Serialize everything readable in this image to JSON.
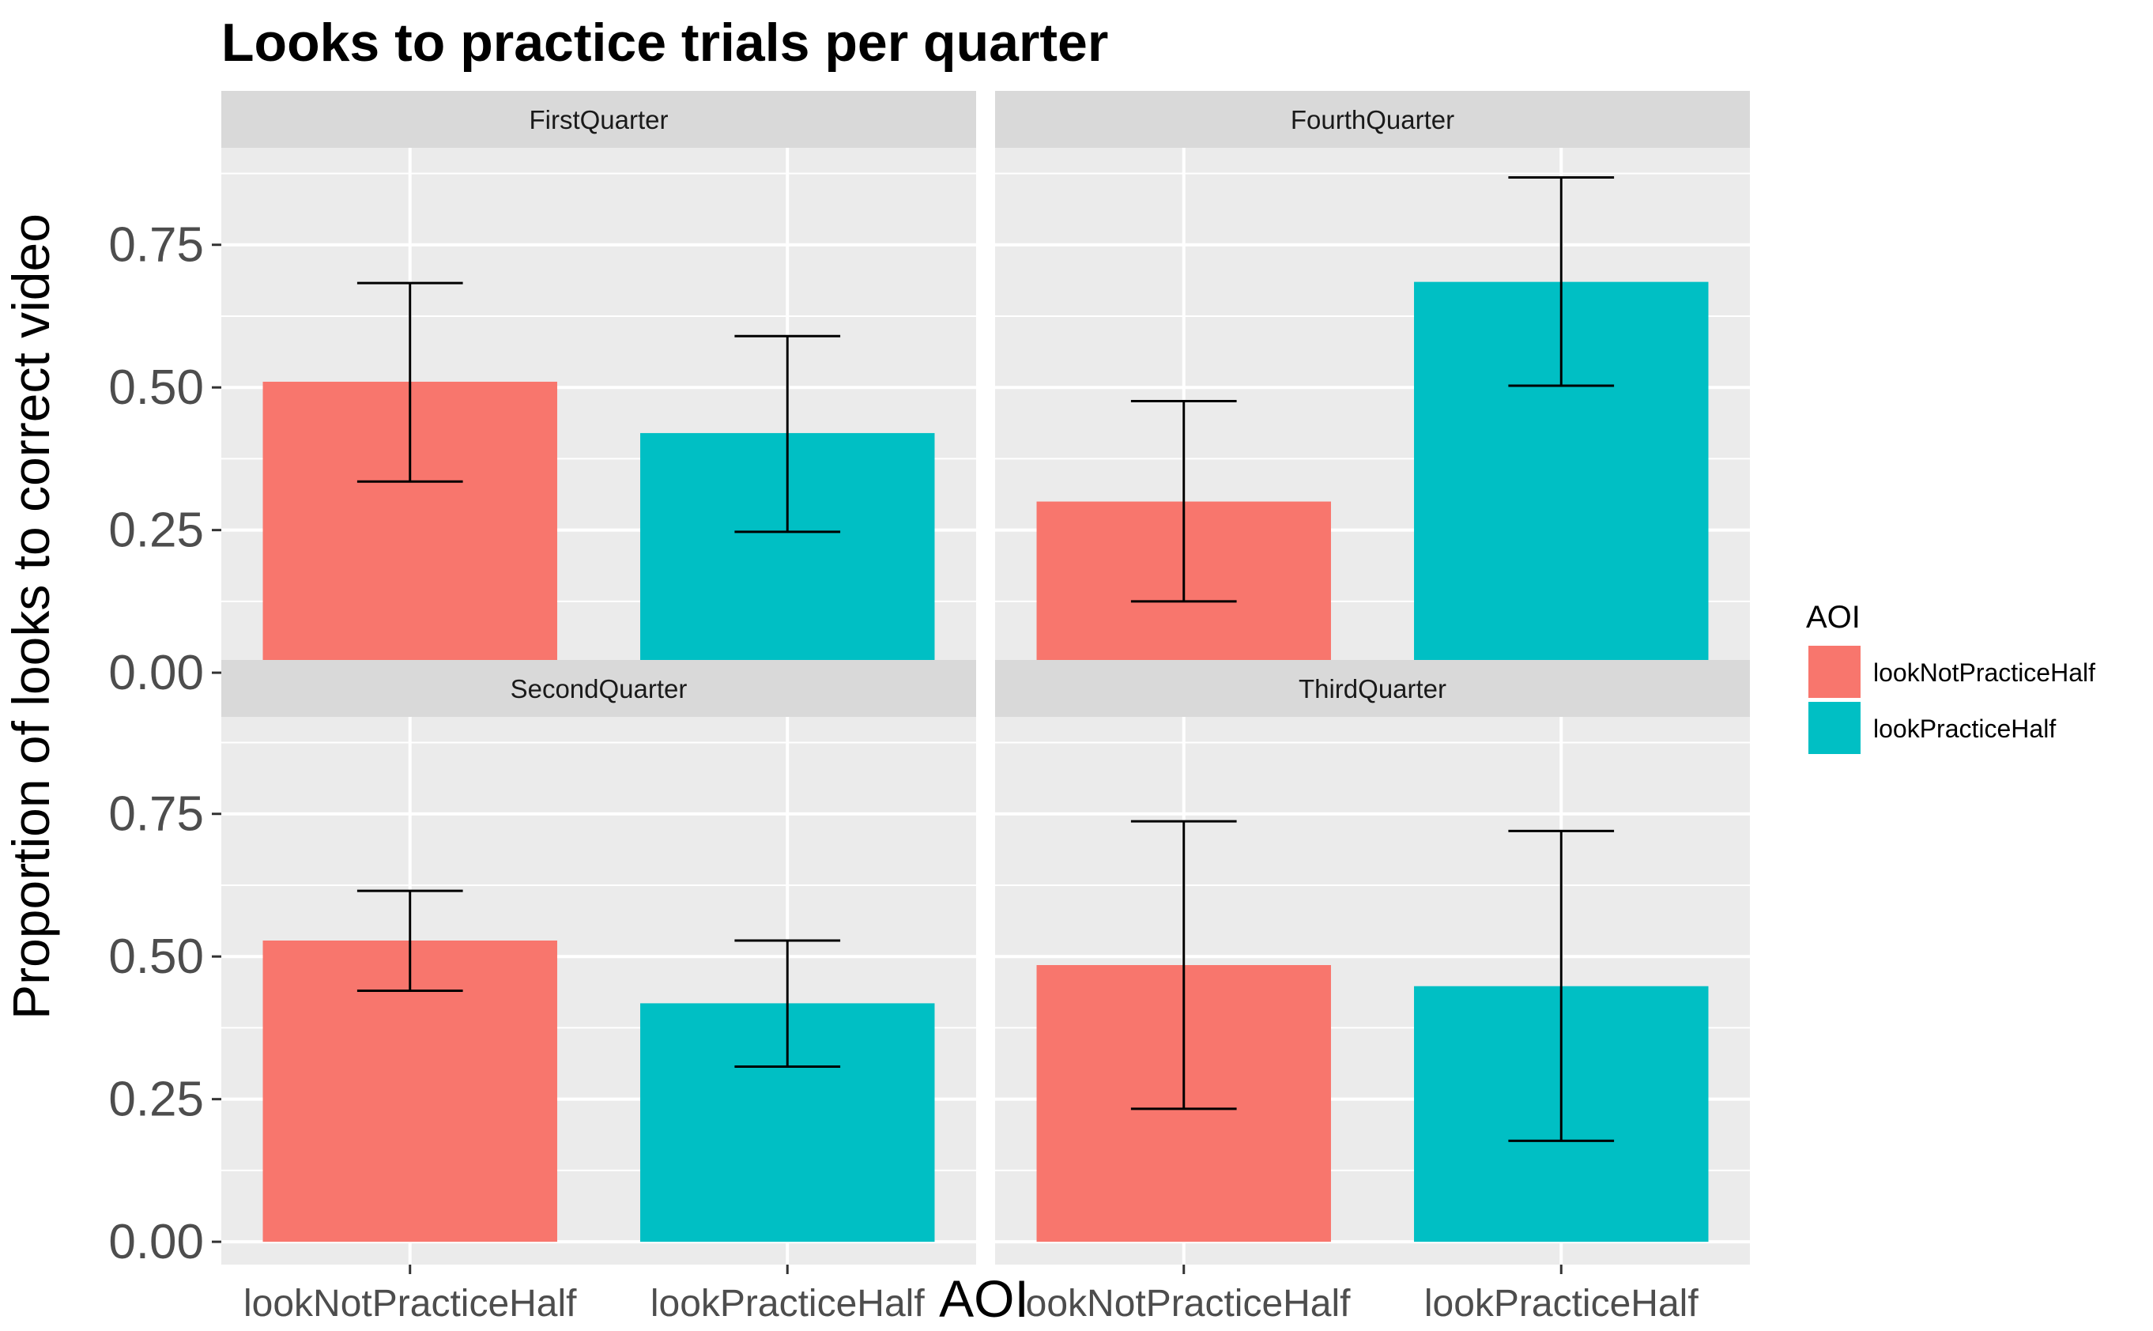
{
  "chart_data": {
    "type": "bar",
    "title": "Looks to practice trials per quarter",
    "xlabel": "AOI",
    "ylabel": "Proportion of looks to correct video",
    "categories": [
      "lookNotPracticeHalf",
      "lookPracticeHalf"
    ],
    "ylim": [
      -0.04,
      0.92
    ],
    "yticks": [
      "0.00",
      "0.25",
      "0.50",
      "0.75"
    ],
    "ytick_values": [
      0,
      0.25,
      0.5,
      0.75
    ],
    "grid": true,
    "facets": [
      {
        "label": "FirstQuarter",
        "values": [
          0.51,
          0.42
        ],
        "err_low": [
          0.335,
          0.247
        ],
        "err_high": [
          0.683,
          0.59
        ]
      },
      {
        "label": "FourthQuarter",
        "values": [
          0.3,
          0.685
        ],
        "err_low": [
          0.125,
          0.503
        ],
        "err_high": [
          0.476,
          0.868
        ]
      },
      {
        "label": "SecondQuarter",
        "values": [
          0.528,
          0.418
        ],
        "err_low": [
          0.44,
          0.307
        ],
        "err_high": [
          0.615,
          0.528
        ]
      },
      {
        "label": "ThirdQuarter",
        "values": [
          0.485,
          0.448
        ],
        "err_low": [
          0.233,
          0.177
        ],
        "err_high": [
          0.737,
          0.72
        ]
      }
    ],
    "legend": {
      "title": "AOI",
      "position": "right",
      "entries": [
        {
          "name": "lookNotPracticeHalf",
          "color": "#F8766D"
        },
        {
          "name": "lookPracticeHalf",
          "color": "#00BFC4"
        }
      ]
    }
  },
  "colors": {
    "panel_bg": "#EBEBEB",
    "strip_bg": "#D9D9D9",
    "grid": "#FFFFFF",
    "errorbar": "#000000"
  }
}
